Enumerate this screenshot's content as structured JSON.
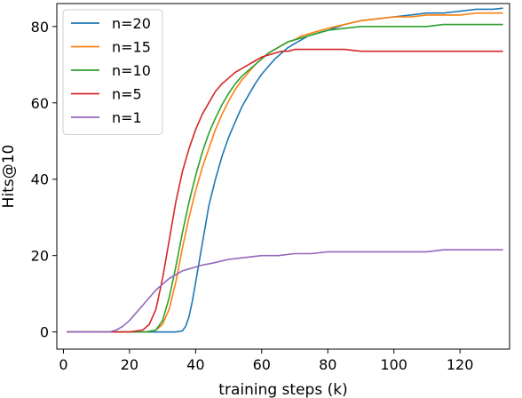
{
  "chart_data": {
    "type": "line",
    "title": "",
    "xlabel": "training steps (k)",
    "ylabel": "Hits@10",
    "xlim": [
      -2,
      135
    ],
    "ylim": [
      -4.5,
      86
    ],
    "xticks": [
      0,
      20,
      40,
      60,
      80,
      100,
      120
    ],
    "yticks": [
      0,
      20,
      40,
      60,
      80
    ],
    "grid": false,
    "legend_placement": "top-left",
    "series": [
      {
        "name": "n=20",
        "color": "#1f77b4",
        "x": [
          1,
          10,
          20,
          30,
          34,
          36,
          37,
          38,
          39,
          40,
          41,
          42,
          43,
          44,
          46,
          48,
          50,
          52,
          54,
          56,
          58,
          60,
          62,
          64,
          66,
          68,
          70,
          72,
          74,
          76,
          78,
          80,
          85,
          90,
          95,
          100,
          105,
          110,
          115,
          120,
          125,
          130,
          133
        ],
        "y": [
          0,
          0,
          0,
          0,
          0,
          0.3,
          1.5,
          4,
          8,
          13,
          18,
          23,
          28,
          33,
          40,
          46,
          51,
          55,
          59,
          62,
          65,
          67.5,
          69.5,
          71.5,
          73,
          74.5,
          75.5,
          76.5,
          77.5,
          78,
          78.5,
          79,
          80.5,
          81.5,
          82,
          82.5,
          83,
          83.5,
          83.5,
          84,
          84.5,
          84.5,
          84.8
        ]
      },
      {
        "name": "n=15",
        "color": "#ff7f0e",
        "x": [
          1,
          10,
          20,
          25,
          28,
          30,
          32,
          34,
          36,
          38,
          40,
          42,
          44,
          46,
          48,
          50,
          52,
          54,
          56,
          58,
          60,
          62,
          64,
          66,
          68,
          70,
          72,
          74,
          76,
          78,
          80,
          85,
          90,
          95,
          100,
          105,
          110,
          115,
          120,
          125,
          130,
          133
        ],
        "y": [
          0,
          0,
          0,
          0,
          0.5,
          2,
          6,
          13,
          22,
          30,
          37,
          43,
          48,
          53,
          57,
          60.5,
          63.5,
          66,
          68,
          70,
          71.5,
          73,
          74,
          75,
          76,
          76.5,
          77.5,
          78,
          78.5,
          79,
          79.5,
          80.5,
          81.5,
          82,
          82.5,
          82.5,
          83,
          83,
          83,
          83.5,
          83.5,
          83.5
        ]
      },
      {
        "name": "n=10",
        "color": "#2ca02c",
        "x": [
          1,
          10,
          20,
          25,
          28,
          30,
          32,
          34,
          36,
          38,
          40,
          42,
          44,
          46,
          48,
          50,
          52,
          54,
          56,
          58,
          60,
          62,
          64,
          66,
          68,
          70,
          72,
          74,
          76,
          78,
          80,
          85,
          90,
          95,
          100,
          105,
          110,
          115,
          120,
          125,
          130,
          133
        ],
        "y": [
          0,
          0,
          0,
          0,
          0.5,
          3,
          9,
          17,
          26,
          34,
          41,
          47,
          52,
          56,
          59.5,
          62.5,
          65,
          67,
          68.5,
          70,
          71.5,
          73,
          74,
          75,
          76,
          76.5,
          77,
          77.5,
          78,
          78.5,
          79,
          79.5,
          80,
          80,
          80,
          80,
          80,
          80.5,
          80.5,
          80.5,
          80.5,
          80.5
        ]
      },
      {
        "name": "n=5",
        "color": "#d62728",
        "x": [
          1,
          10,
          20,
          24,
          26,
          28,
          30,
          32,
          34,
          36,
          38,
          40,
          42,
          44,
          46,
          48,
          50,
          52,
          54,
          56,
          58,
          60,
          62,
          64,
          66,
          68,
          70,
          75,
          80,
          85,
          90,
          95,
          100,
          105,
          110,
          115,
          120,
          125,
          130,
          133
        ],
        "y": [
          0,
          0,
          0,
          0.5,
          2,
          6,
          14,
          24,
          34,
          42,
          48,
          53,
          57,
          60,
          63,
          65,
          66.5,
          68,
          69,
          70,
          71,
          72,
          72.5,
          73,
          73.5,
          73.5,
          74,
          74,
          74,
          74,
          73.5,
          73.5,
          73.5,
          73.5,
          73.5,
          73.5,
          73.5,
          73.5,
          73.5,
          73.5
        ]
      },
      {
        "name": "n=1",
        "color": "#9467bd",
        "x": [
          1,
          10,
          14,
          16,
          18,
          20,
          22,
          24,
          26,
          28,
          30,
          32,
          34,
          36,
          38,
          40,
          42,
          45,
          50,
          55,
          60,
          65,
          70,
          75,
          80,
          85,
          90,
          95,
          100,
          105,
          110,
          115,
          120,
          125,
          130,
          133
        ],
        "y": [
          0,
          0,
          0,
          0.5,
          1.5,
          3,
          5,
          7,
          9,
          11,
          12.5,
          14,
          15,
          16,
          16.5,
          17,
          17.5,
          18,
          19,
          19.5,
          20,
          20,
          20.5,
          20.5,
          21,
          21,
          21,
          21,
          21,
          21,
          21,
          21.5,
          21.5,
          21.5,
          21.5,
          21.5
        ]
      }
    ]
  }
}
